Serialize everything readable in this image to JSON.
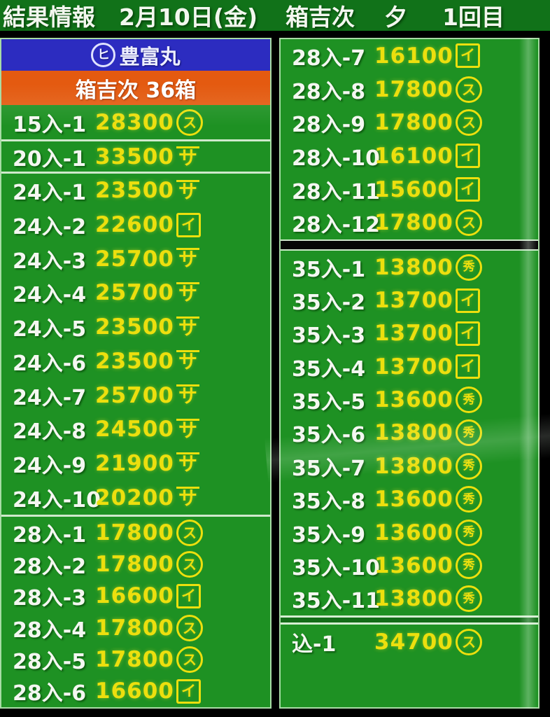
{
  "header": {
    "title": "結果情報",
    "date": "2月10日(金)",
    "seller": "箱吉次",
    "session": "夕",
    "round": "1回目"
  },
  "left_column": {
    "vessel_mark_char": "ヒ",
    "vessel_name": "豊富丸",
    "lot_info": "箱吉次 36箱",
    "sections": [
      {
        "rows": [
          {
            "label": "15入-1",
            "price": "28300",
            "mark": "maru-su"
          }
        ]
      },
      {
        "rows": [
          {
            "label": "20入-1",
            "price": "33500",
            "mark": "yama-sa"
          }
        ]
      },
      {
        "rows": [
          {
            "label": "24入-1",
            "price": "23500",
            "mark": "yama-sa"
          },
          {
            "label": "24入-2",
            "price": "22600",
            "mark": "kaku-i"
          },
          {
            "label": "24入-3",
            "price": "25700",
            "mark": "yama-sa"
          },
          {
            "label": "24入-4",
            "price": "25700",
            "mark": "yama-sa"
          },
          {
            "label": "24入-5",
            "price": "23500",
            "mark": "yama-sa"
          },
          {
            "label": "24入-6",
            "price": "23500",
            "mark": "yama-sa"
          },
          {
            "label": "24入-7",
            "price": "25700",
            "mark": "yama-sa"
          },
          {
            "label": "24入-8",
            "price": "24500",
            "mark": "yama-sa"
          },
          {
            "label": "24入-9",
            "price": "21900",
            "mark": "yama-sa"
          },
          {
            "label": "24入-10",
            "price": "20200",
            "mark": "yama-sa"
          }
        ]
      },
      {
        "rows": [
          {
            "label": "28入-1",
            "price": "17800",
            "mark": "maru-su"
          },
          {
            "label": "28入-2",
            "price": "17800",
            "mark": "maru-su"
          },
          {
            "label": "28入-3",
            "price": "16600",
            "mark": "kaku-i"
          },
          {
            "label": "28入-4",
            "price": "17800",
            "mark": "maru-su"
          },
          {
            "label": "28入-5",
            "price": "17800",
            "mark": "maru-su"
          },
          {
            "label": "28入-6",
            "price": "16600",
            "mark": "kaku-i"
          }
        ]
      }
    ]
  },
  "right_column": {
    "sections": [
      {
        "rows": [
          {
            "label": "28入-7",
            "price": "16100",
            "mark": "kaku-i"
          },
          {
            "label": "28入-8",
            "price": "17800",
            "mark": "maru-su"
          },
          {
            "label": "28入-9",
            "price": "17800",
            "mark": "maru-su"
          },
          {
            "label": "28入-10",
            "price": "16100",
            "mark": "kaku-i"
          },
          {
            "label": "28入-11",
            "price": "15600",
            "mark": "kaku-i"
          },
          {
            "label": "28入-12",
            "price": "17800",
            "mark": "maru-su"
          }
        ]
      },
      {
        "rows": [
          {
            "label": "35入-1",
            "price": "13800",
            "mark": "maru-hide"
          },
          {
            "label": "35入-2",
            "price": "13700",
            "mark": "kaku-i"
          },
          {
            "label": "35入-3",
            "price": "13700",
            "mark": "kaku-i"
          },
          {
            "label": "35入-4",
            "price": "13700",
            "mark": "kaku-i"
          },
          {
            "label": "35入-5",
            "price": "13600",
            "mark": "maru-hide"
          },
          {
            "label": "35入-6",
            "price": "13800",
            "mark": "maru-hide"
          },
          {
            "label": "35入-7",
            "price": "13800",
            "mark": "maru-hide"
          },
          {
            "label": "35入-8",
            "price": "13600",
            "mark": "maru-hide"
          },
          {
            "label": "35入-9",
            "price": "13600",
            "mark": "maru-hide"
          },
          {
            "label": "35入-10",
            "price": "13600",
            "mark": "maru-hide"
          },
          {
            "label": "35入-11",
            "price": "13800",
            "mark": "maru-hide"
          }
        ]
      },
      {
        "rows": [
          {
            "label": "込-1",
            "price": "34700",
            "mark": "maru-su"
          }
        ]
      }
    ]
  },
  "marks": {
    "maru-su": {
      "shape": "circle",
      "char": "ス",
      "desc": "circled-su buyer mark"
    },
    "kaku-i": {
      "shape": "square",
      "char": "イ",
      "desc": "squared-i buyer mark"
    },
    "yama-sa": {
      "shape": "overline",
      "char": "サ",
      "desc": "overlined-sa buyer mark"
    },
    "maru-hide": {
      "shape": "circle dense",
      "char": "秀",
      "desc": "circled-kanji buyer mark"
    }
  },
  "colors": {
    "board_green": "#1e9123",
    "header_green": "#117219",
    "banner_blue": "#2c2cc0",
    "banner_orange": "#e45a10",
    "price_yellow": "#ecdf0e",
    "label_white": "#f4f7f1"
  }
}
